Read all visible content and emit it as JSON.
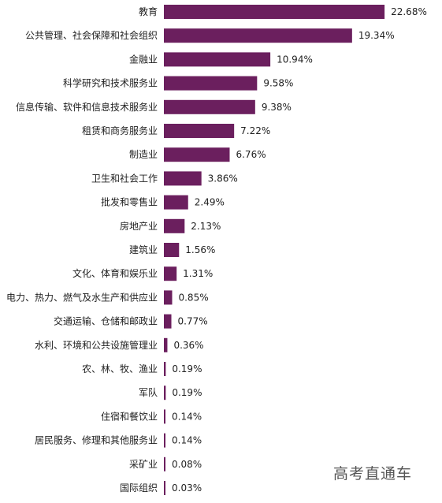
{
  "chart_data": {
    "type": "bar",
    "orientation": "horizontal",
    "categories": [
      "教育",
      "公共管理、社会保障和社会组织",
      "金融业",
      "科学研究和技术服务业",
      "信息传输、软件和信息技术服务业",
      "租赁和商务服务业",
      "制造业",
      "卫生和社会工作",
      "批发和零售业",
      "房地产业",
      "建筑业",
      "文化、体育和娱乐业",
      "电力、热力、燃气及水生产和供应业",
      "交通运输、仓储和邮政业",
      "水利、环境和公共设施管理业",
      "农、林、牧、渔业",
      "军队",
      "住宿和餐饮业",
      "居民服务、修理和其他服务业",
      "采矿业",
      "国际组织"
    ],
    "values": [
      22.68,
      19.34,
      10.94,
      9.58,
      9.38,
      7.22,
      6.76,
      3.86,
      2.49,
      2.13,
      1.56,
      1.31,
      0.85,
      0.77,
      0.36,
      0.19,
      0.19,
      0.14,
      0.14,
      0.08,
      0.03
    ],
    "value_labels": [
      "22.68%",
      "19.34%",
      "10.94%",
      "9.58%",
      "9.38%",
      "7.22%",
      "6.76%",
      "3.86%",
      "2.49%",
      "2.13%",
      "1.56%",
      "1.31%",
      "0.85%",
      "0.77%",
      "0.36%",
      "0.19%",
      "0.19%",
      "0.14%",
      "0.14%",
      "0.08%",
      "0.03%"
    ],
    "unit": "%",
    "xlim": [
      0,
      23
    ],
    "bar_color": "#6b1f5e",
    "grid": false,
    "legend": "none"
  },
  "watermark": "高考直通车"
}
